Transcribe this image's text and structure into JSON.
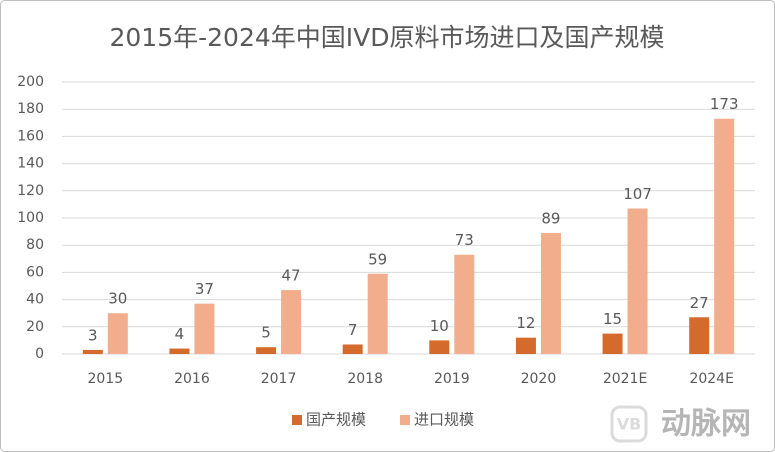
{
  "chart_data": {
    "type": "bar",
    "title": "2015年-2024年中国IVD原料市场进口及国产规模",
    "categories": [
      "2015",
      "2016",
      "2017",
      "2018",
      "2019",
      "2020",
      "2021E",
      "2024E"
    ],
    "series": [
      {
        "name": "国产规模",
        "color": "#d46a2b",
        "values": [
          3,
          4,
          5,
          7,
          10,
          12,
          15,
          27
        ]
      },
      {
        "name": "进口规模",
        "color": "#f2ad8d",
        "values": [
          30,
          37,
          47,
          59,
          73,
          89,
          107,
          173
        ]
      }
    ],
    "ylim": [
      0,
      200
    ],
    "yticks": [
      0,
      20,
      40,
      60,
      80,
      100,
      120,
      140,
      160,
      180,
      200
    ],
    "grid": true,
    "legend": "bottom",
    "watermark": "动脉网"
  }
}
